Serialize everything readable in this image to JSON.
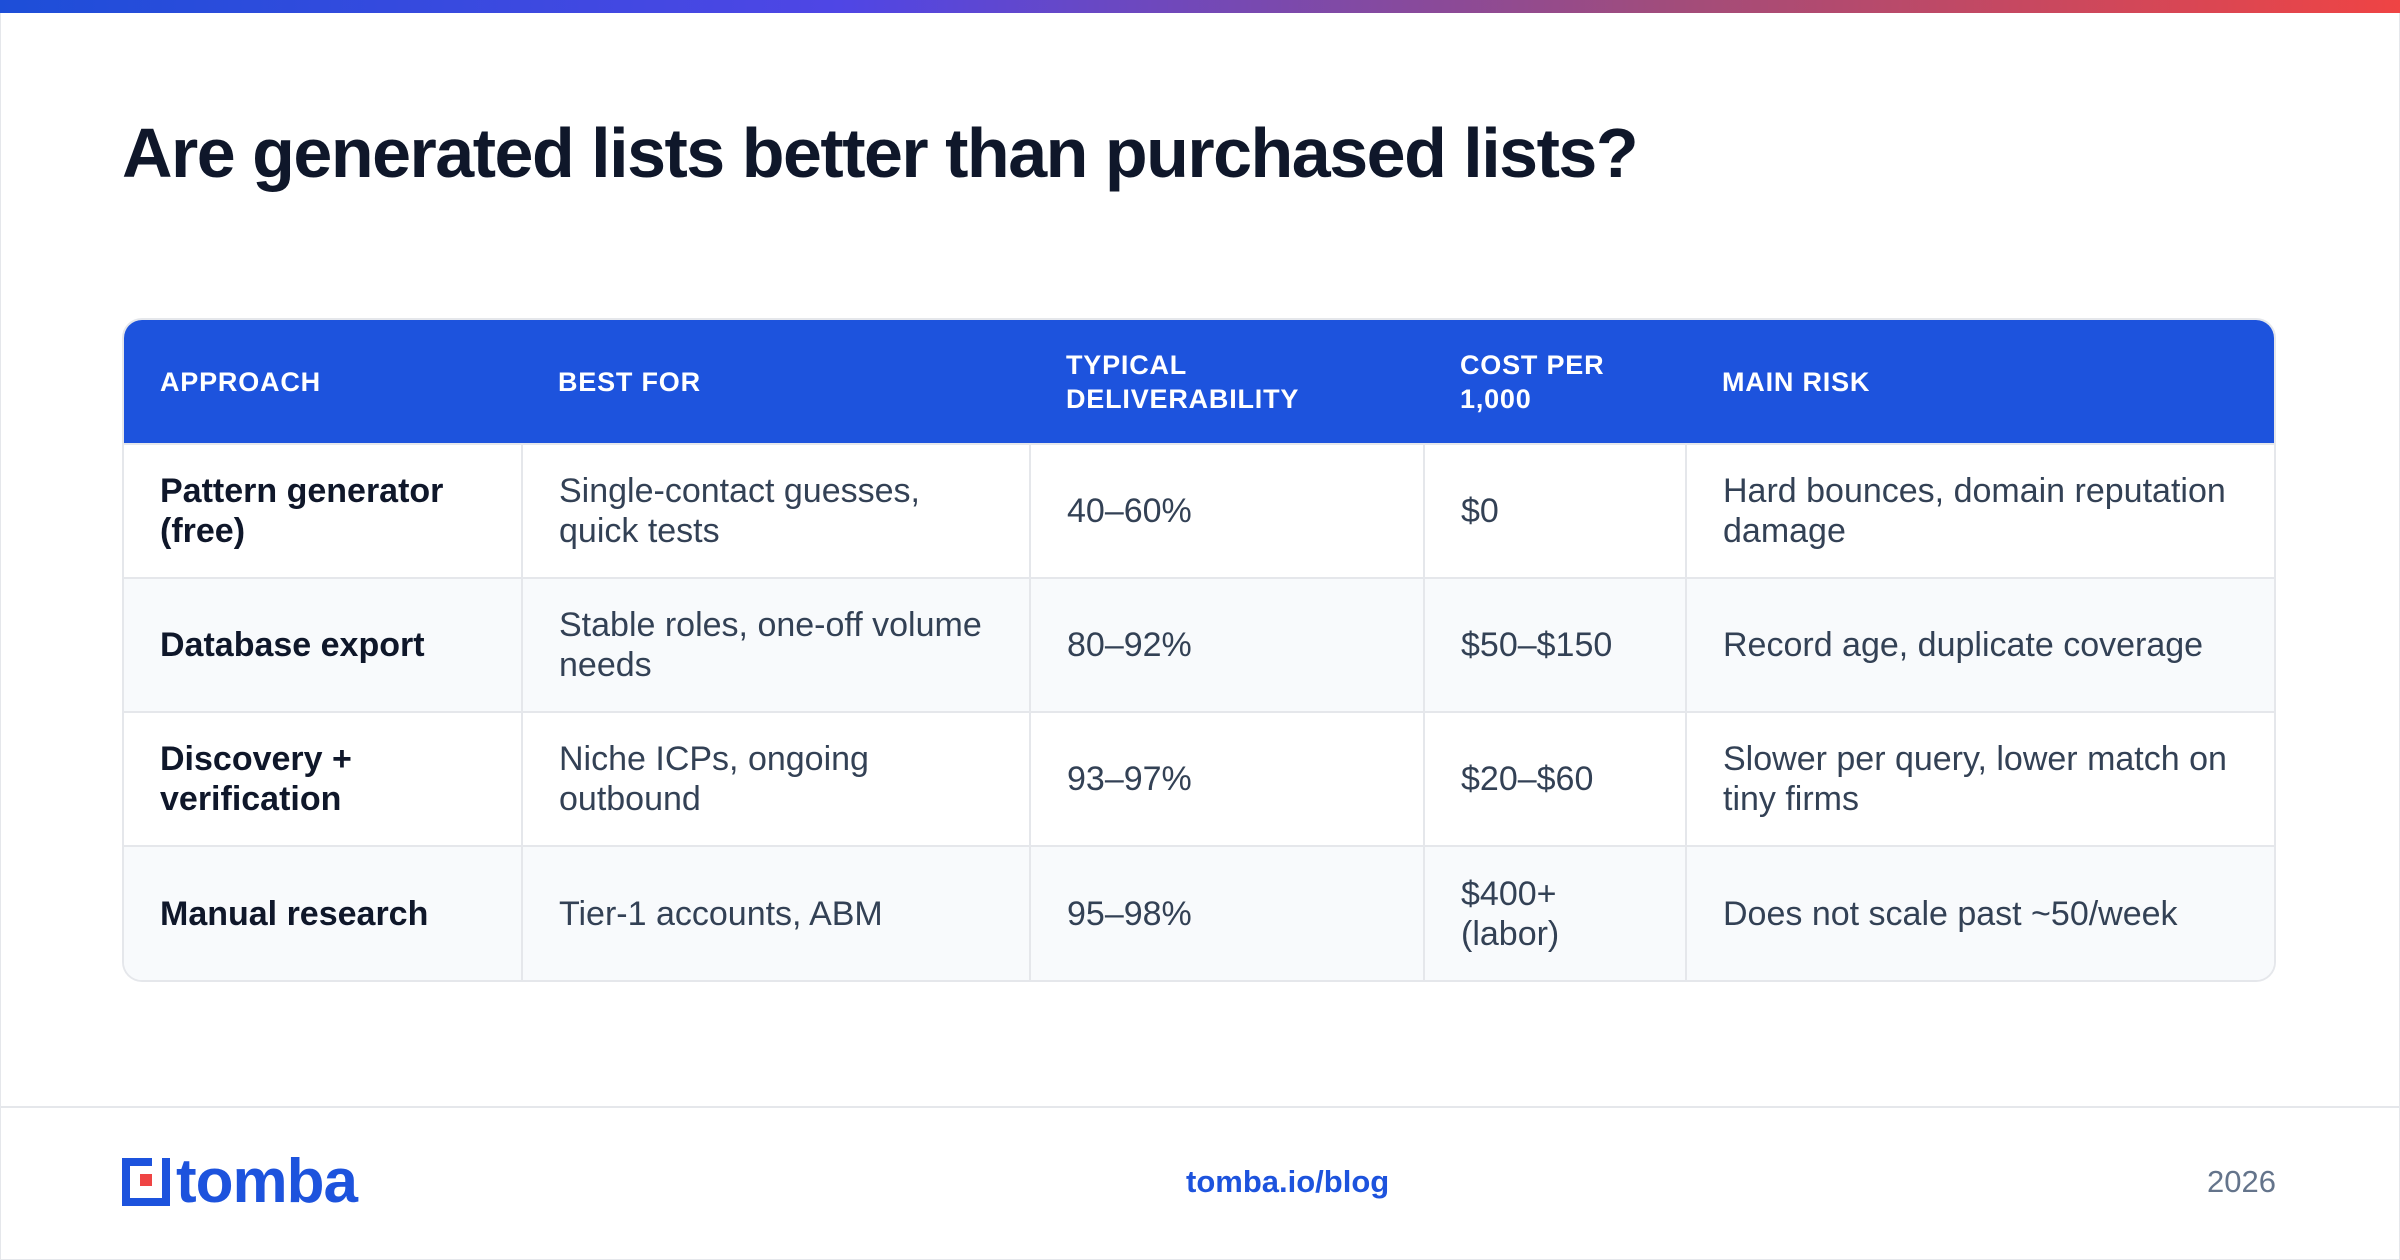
{
  "title": "Are generated lists better than purchased lists?",
  "table": {
    "headers": [
      "APPROACH",
      "BEST FOR",
      "TYPICAL DELIVERABILITY",
      "COST PER 1,000",
      "MAIN RISK"
    ],
    "rows": [
      [
        "Pattern generator (free)",
        "Single-contact guesses, quick tests",
        "40–60%",
        "$0",
        "Hard bounces, domain reputation damage"
      ],
      [
        "Database export",
        "Stable roles, one-off volume needs",
        "80–92%",
        "$50–$150",
        "Record age, duplicate coverage"
      ],
      [
        "Discovery + verification",
        "Niche ICPs, ongoing outbound",
        "93–97%",
        "$20–$60",
        "Slower per query, lower match on tiny firms"
      ],
      [
        "Manual research",
        "Tier-1 accounts, ABM",
        "95–98%",
        "$400+ (labor)",
        "Does not scale past ~50/week"
      ]
    ]
  },
  "footer": {
    "brand": "tomba",
    "link": "tomba.io/blog",
    "year": "2026"
  },
  "colors": {
    "accent": "#1d53dd",
    "gradient": [
      "#1d4ed8",
      "#ef4444"
    ]
  }
}
